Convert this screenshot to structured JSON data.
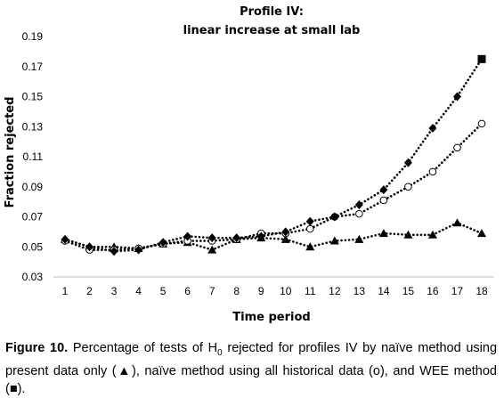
{
  "chart_data": {
    "type": "line",
    "title": "Profile IV:",
    "subtitle": "linear increase at small lab",
    "xlabel": "Time period",
    "ylabel": "Fraction rejected",
    "categories": [
      "1",
      "2",
      "3",
      "4",
      "5",
      "6",
      "7",
      "8",
      "9",
      "10",
      "11",
      "12",
      "13",
      "14",
      "15",
      "16",
      "17",
      "18"
    ],
    "ylim": [
      0.03,
      0.2
    ],
    "yticks": [
      "0.03",
      "0.05",
      "0.07",
      "0.09",
      "0.11",
      "0.13",
      "0.15",
      "0.17",
      "0.19"
    ],
    "grid": false,
    "legend": "none",
    "series": [
      {
        "marker": "triangle",
        "line_style": "dotted",
        "values": [
          0.055,
          0.05,
          0.05,
          0.049,
          0.052,
          0.053,
          0.048,
          0.055,
          0.056,
          0.055,
          0.05,
          0.054,
          0.055,
          0.059,
          0.058,
          0.058,
          0.066,
          0.059
        ]
      },
      {
        "marker": "open-circle",
        "line_style": "dotted",
        "values": [
          0.054,
          0.048,
          0.048,
          0.049,
          0.052,
          0.054,
          0.054,
          0.055,
          0.059,
          0.059,
          0.062,
          0.07,
          0.072,
          0.081,
          0.09,
          0.1,
          0.116,
          0.132
        ]
      },
      {
        "marker": "filled-diamond",
        "line_style": "dotted",
        "end_marker": "filled-square",
        "values": [
          0.055,
          0.05,
          0.047,
          0.048,
          0.053,
          0.057,
          0.056,
          0.056,
          0.057,
          0.06,
          0.067,
          0.07,
          0.078,
          0.088,
          0.106,
          0.129,
          0.15,
          0.175
        ]
      }
    ]
  },
  "caption": {
    "label": "Figure 10.",
    "text_before_sub": "Percentage of tests of H",
    "subscript": "0",
    "text_after_sub": " rejected for profiles IV by naïve method using present data only (▲), naïve method using all historical data (o), and WEE method (■)."
  }
}
